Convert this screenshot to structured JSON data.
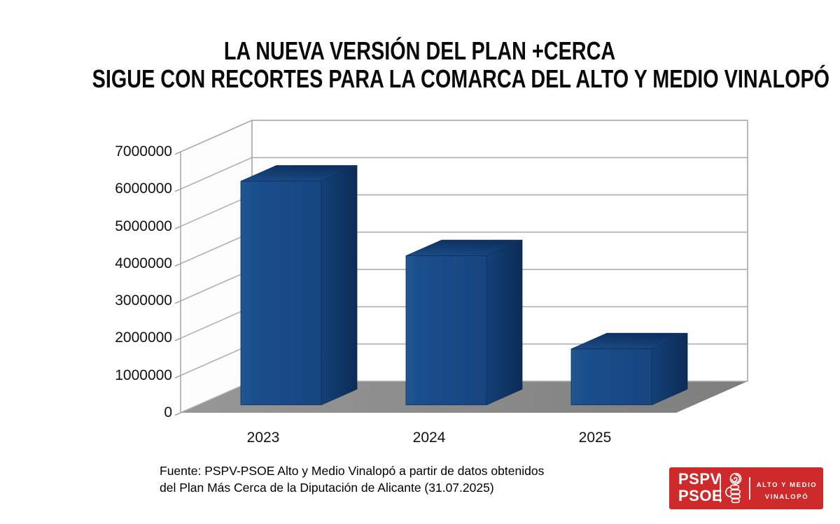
{
  "title": {
    "line1": "LA NUEVA VERSIÓN DEL PLAN +CERCA",
    "line2": "SIGUE CON RECORTES PARA LA COMARCA DEL ALTO Y MEDIO VINALOPÓ"
  },
  "chart_data": {
    "type": "bar",
    "style": "3d-column",
    "categories": [
      "2023",
      "2024",
      "2025"
    ],
    "values": [
      6000000,
      4000000,
      1500000
    ],
    "y_ticks": [
      "0",
      "1000000",
      "2000000",
      "3000000",
      "4000000",
      "5000000",
      "6000000",
      "7000000"
    ],
    "ylim": [
      0,
      7000000
    ],
    "grid": true,
    "legend": "none",
    "bar_color_front": "#1b4e8d",
    "bar_color_top": "#103767",
    "bar_color_side": "#0f3a6e",
    "floor_color": "#8c8c8c",
    "wall_line_color": "#a9a9a9"
  },
  "footer": {
    "source_line1": "Fuente: PSPV-PSOE Alto y Medio Vinalopó a partir de datos obtenidos",
    "source_line2": "del Plan Más Cerca de la Diputación de Alicante (31.07.2025)"
  },
  "logo": {
    "party_line1": "PSPV",
    "party_line2": "PSOE",
    "region_line1": "ALTO Y MEDIO",
    "region_line2": "VINALOPÓ",
    "bg_color": "#ce292b",
    "emblem": "psoe-fist-and-rose"
  }
}
